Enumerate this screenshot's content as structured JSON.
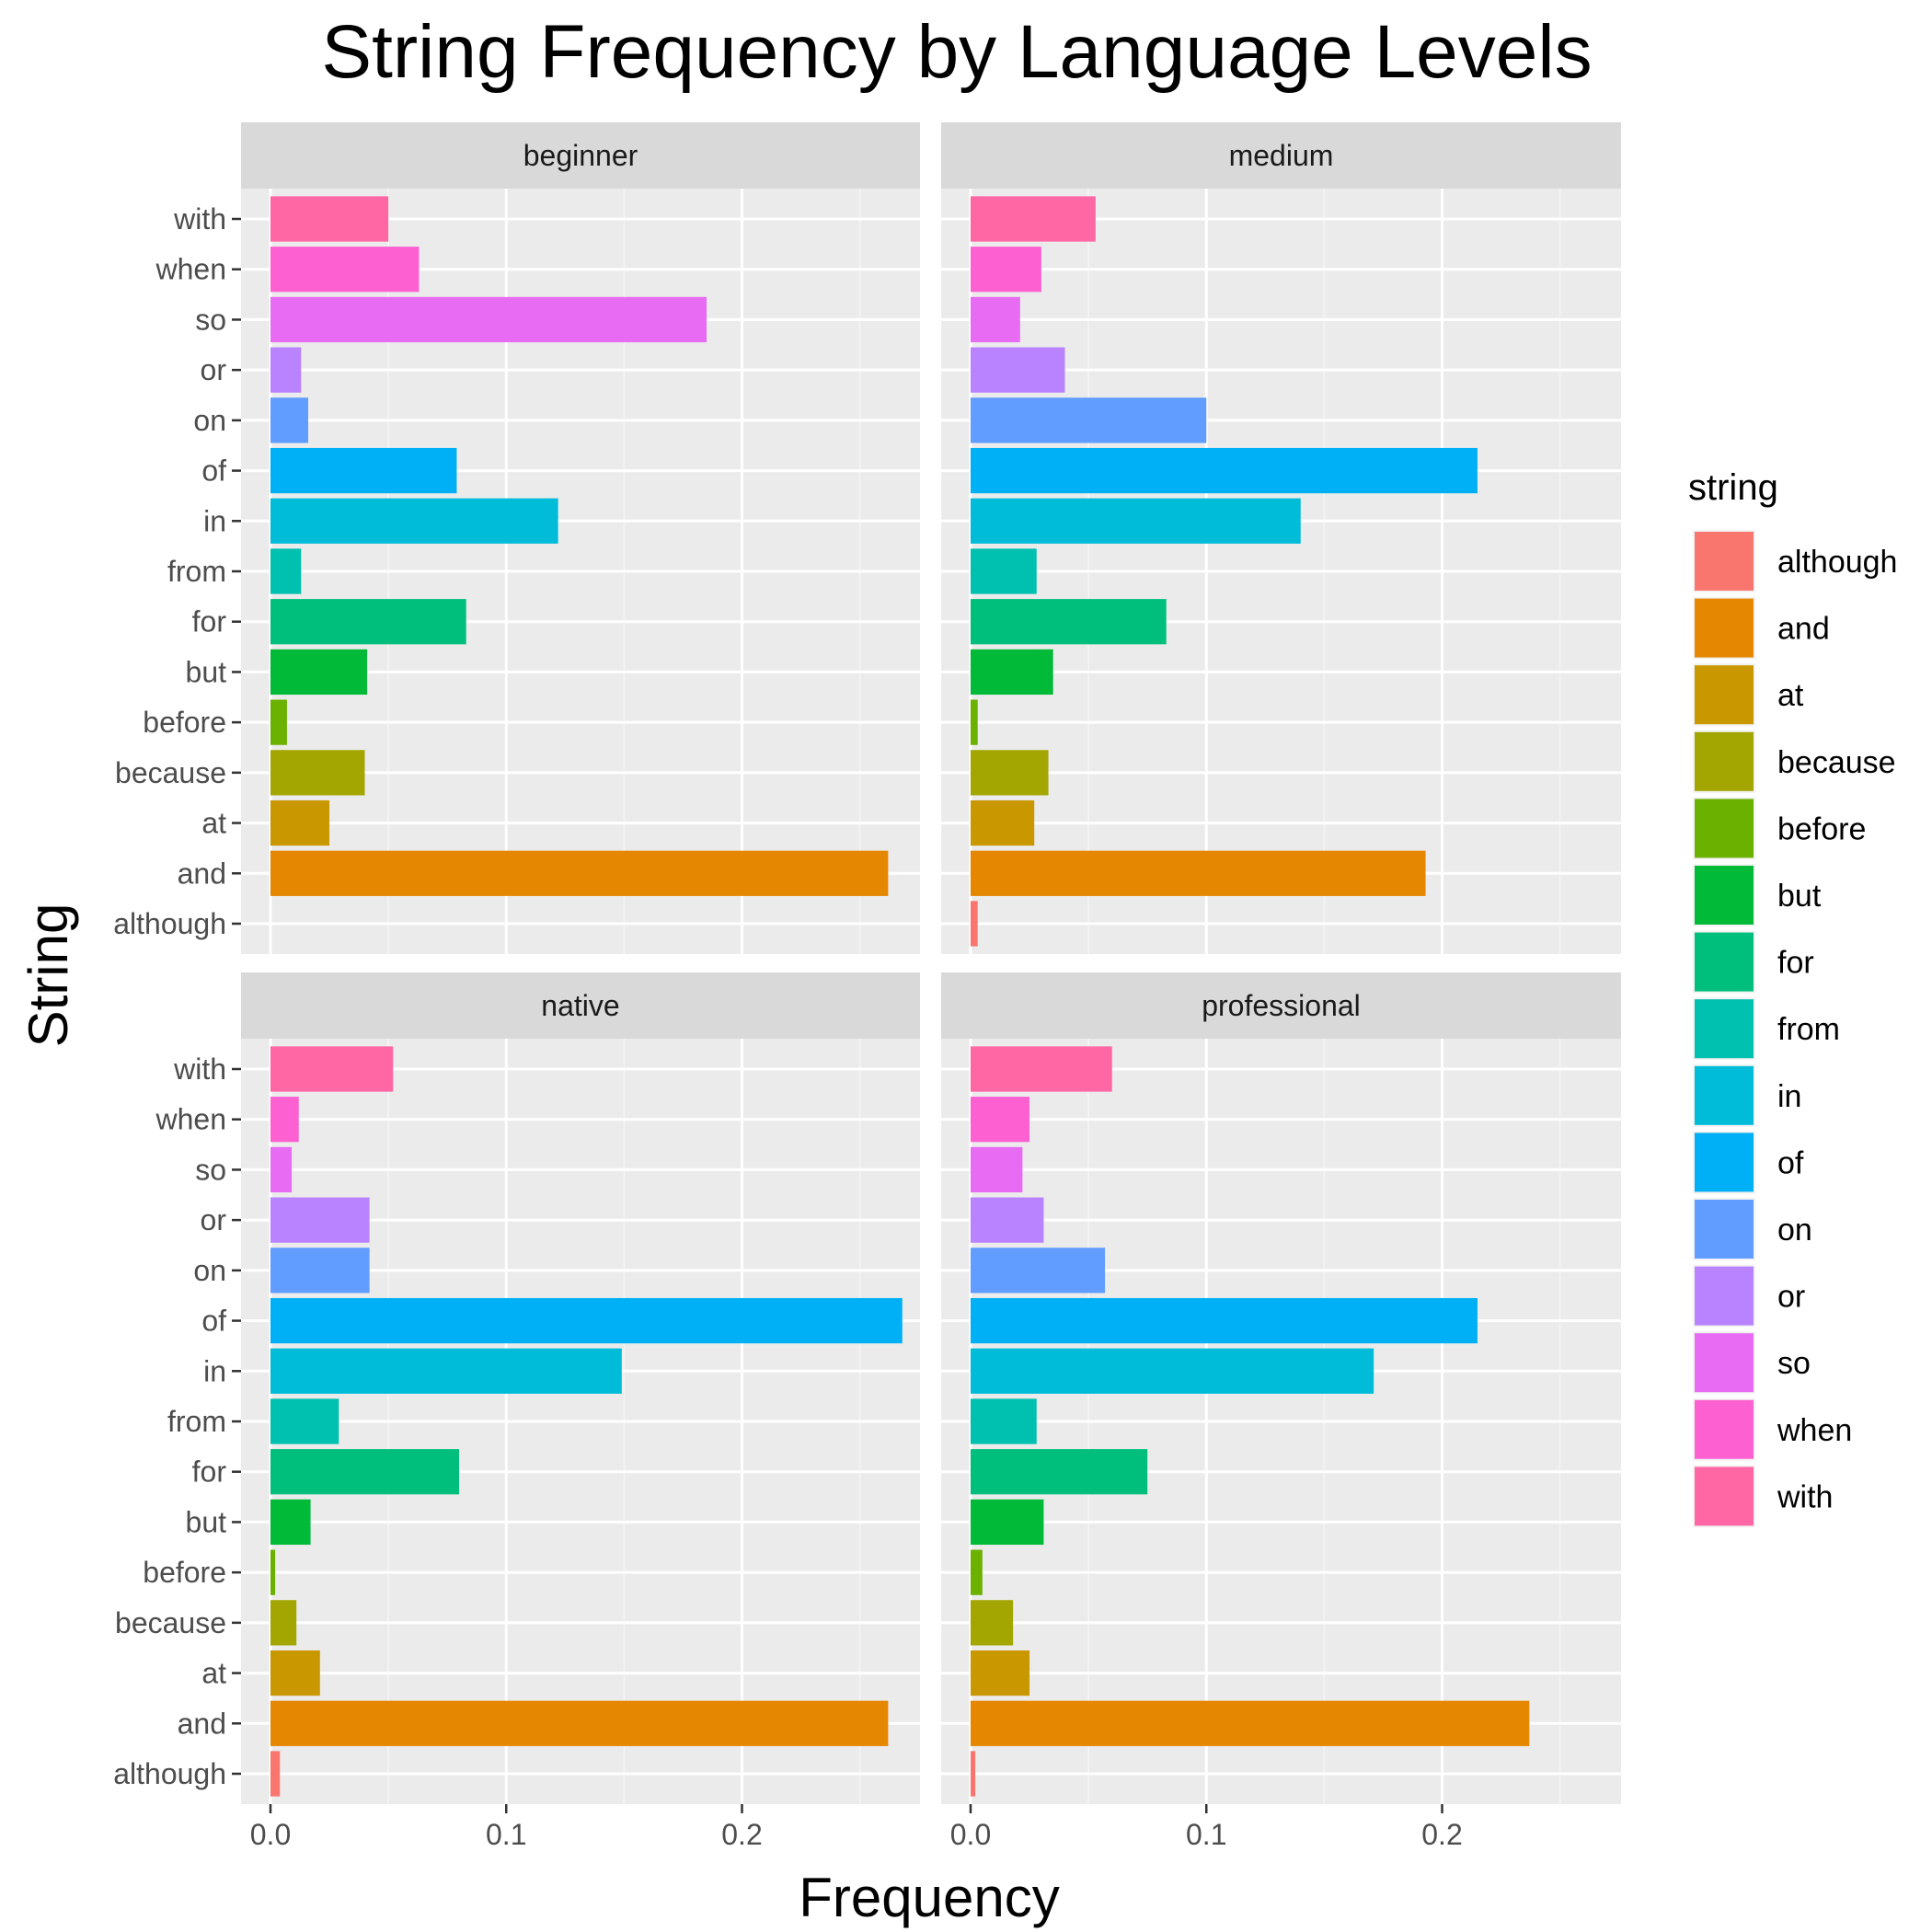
{
  "chart_data": {
    "type": "bar",
    "orientation": "horizontal",
    "faceted": true,
    "title": "String Frequency by Language Levels",
    "xlabel": "Frequency",
    "ylabel": "String",
    "xlim": [
      0,
      0.27
    ],
    "x_ticks": [
      0.0,
      0.1,
      0.2
    ],
    "x_tick_labels": [
      "0.0",
      "0.1",
      "0.2"
    ],
    "grid": true,
    "legend_title": "string",
    "legend_position": "right",
    "categories": [
      "although",
      "and",
      "at",
      "because",
      "before",
      "but",
      "for",
      "from",
      "in",
      "of",
      "on",
      "or",
      "so",
      "when",
      "with"
    ],
    "colors": {
      "although": "#F8766D",
      "and": "#E58700",
      "at": "#C99800",
      "because": "#A3A500",
      "before": "#6BB100",
      "but": "#00BA38",
      "for": "#00BF7D",
      "from": "#00C0AF",
      "in": "#00BCD8",
      "of": "#00B0F6",
      "on": "#619CFF",
      "or": "#B983FF",
      "so": "#E76BF3",
      "when": "#FD61D1",
      "with": "#FF67A4"
    },
    "panels": [
      {
        "name": "beginner",
        "values": [
          0.0,
          0.262,
          0.025,
          0.04,
          0.007,
          0.041,
          0.083,
          0.013,
          0.122,
          0.079,
          0.016,
          0.013,
          0.185,
          0.063,
          0.05
        ]
      },
      {
        "name": "medium",
        "values": [
          0.003,
          0.193,
          0.027,
          0.033,
          0.003,
          0.035,
          0.083,
          0.028,
          0.14,
          0.215,
          0.1,
          0.04,
          0.021,
          0.03,
          0.053
        ]
      },
      {
        "name": "native",
        "values": [
          0.004,
          0.262,
          0.021,
          0.011,
          0.002,
          0.017,
          0.08,
          0.029,
          0.149,
          0.268,
          0.042,
          0.042,
          0.009,
          0.012,
          0.052
        ]
      },
      {
        "name": "professional",
        "values": [
          0.002,
          0.237,
          0.025,
          0.018,
          0.005,
          0.031,
          0.075,
          0.028,
          0.171,
          0.215,
          0.057,
          0.031,
          0.022,
          0.025,
          0.06
        ]
      }
    ]
  }
}
